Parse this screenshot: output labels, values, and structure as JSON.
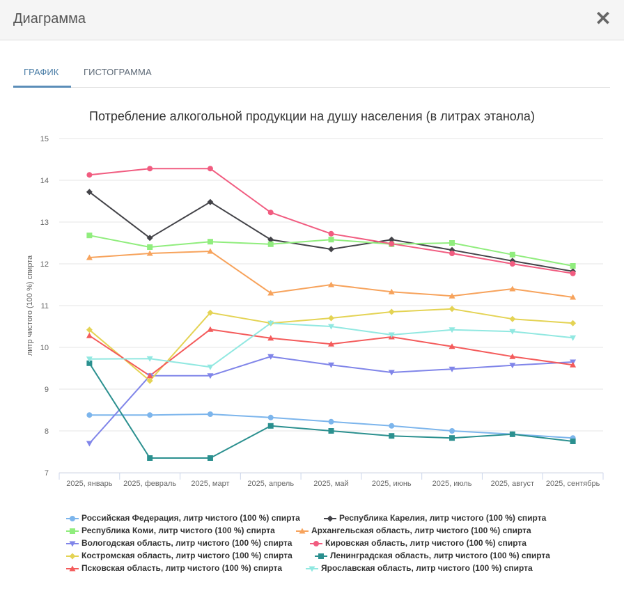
{
  "header": {
    "title": "Диаграмма",
    "close_label": "✕"
  },
  "tabs": [
    {
      "label": "ГРАФИК",
      "active": true
    },
    {
      "label": "ГИСТОГРАММА",
      "active": false
    }
  ],
  "chart_data": {
    "type": "line",
    "title": "Потребление алкогольной продукции на душу населения (в литрах этанола)",
    "xlabel": "",
    "ylabel": "литр чистого (100 %) спирта",
    "ylim": [
      7,
      15
    ],
    "yticks": [
      7,
      8,
      9,
      10,
      11,
      12,
      13,
      14,
      15
    ],
    "grid": true,
    "legend_position": "bottom",
    "categories": [
      "2025, январь",
      "2025, февраль",
      "2025, март",
      "2025, апрель",
      "2025, май",
      "2025, июнь",
      "2025, июль",
      "2025, август",
      "2025, сентябрь"
    ],
    "series": [
      {
        "name": "Российская Федерация, литр чистого (100 %) спирта",
        "color": "#7cb5ec",
        "marker": "circle",
        "values": [
          8.38,
          8.38,
          8.4,
          8.32,
          8.22,
          8.12,
          8.0,
          7.92,
          7.83
        ]
      },
      {
        "name": "Республика Карелия, литр чистого (100 %) спирта",
        "color": "#434348",
        "marker": "diamond",
        "values": [
          13.72,
          12.62,
          13.48,
          12.58,
          12.35,
          12.58,
          12.33,
          12.07,
          11.82
        ]
      },
      {
        "name": "Республика Коми, литр чистого (100 %) спирта",
        "color": "#90ed7d",
        "marker": "square",
        "values": [
          12.68,
          12.4,
          12.53,
          12.47,
          12.58,
          12.47,
          12.5,
          12.22,
          11.95
        ]
      },
      {
        "name": "Архангельская область, литр чистого (100 %) спирта",
        "color": "#f7a35c",
        "marker": "triangle",
        "values": [
          12.15,
          12.25,
          12.3,
          11.3,
          11.5,
          11.33,
          11.23,
          11.4,
          11.2
        ]
      },
      {
        "name": "Вологодская область, литр чистого (100 %) спирта",
        "color": "#8085e9",
        "marker": "triangle-down",
        "values": [
          7.7,
          9.32,
          9.32,
          9.78,
          9.58,
          9.4,
          9.48,
          9.57,
          9.65
        ]
      },
      {
        "name": "Кировская область, литр чистого (100 %) спирта",
        "color": "#f15c80",
        "marker": "circle",
        "values": [
          14.13,
          14.28,
          14.28,
          13.23,
          12.72,
          12.48,
          12.25,
          12.0,
          11.77
        ]
      },
      {
        "name": "Костромская область, литр чистого (100 %) спирта",
        "color": "#e4d354",
        "marker": "diamond",
        "values": [
          10.42,
          9.2,
          10.83,
          10.58,
          10.7,
          10.85,
          10.92,
          10.68,
          10.58
        ]
      },
      {
        "name": "Ленинградская область, литр чистого (100 %) спирта",
        "color": "#2b908f",
        "marker": "square",
        "values": [
          9.62,
          7.35,
          7.35,
          8.12,
          8.0,
          7.88,
          7.83,
          7.92,
          7.75
        ]
      },
      {
        "name": "Псковская область, литр чистого (100 %) спирта",
        "color": "#f45b5b",
        "marker": "triangle",
        "values": [
          10.28,
          9.32,
          10.43,
          10.22,
          10.08,
          10.25,
          10.02,
          9.78,
          9.58
        ]
      },
      {
        "name": "Ярославская область, литр чистого (100 %) спирта",
        "color": "#91e8e1",
        "marker": "triangle-down",
        "values": [
          9.72,
          9.73,
          9.53,
          10.58,
          10.5,
          10.3,
          10.42,
          10.38,
          10.23
        ]
      }
    ]
  }
}
